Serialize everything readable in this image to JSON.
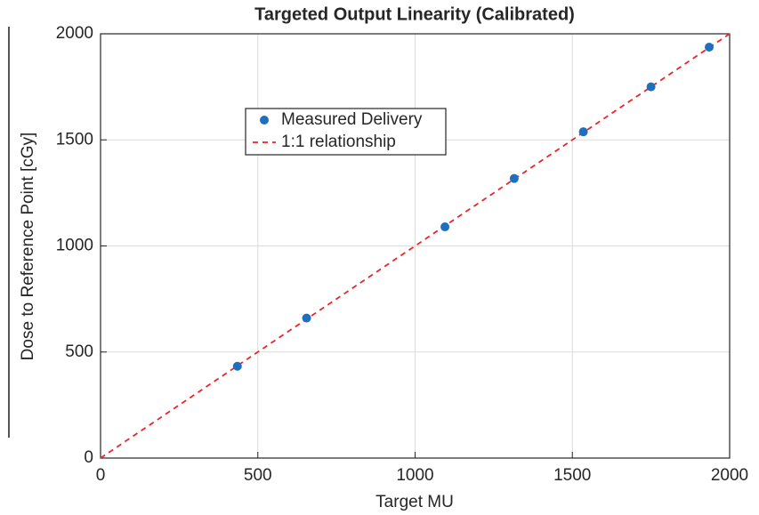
{
  "chart_data": {
    "type": "scatter",
    "title": "Targeted Output Linearity (Calibrated)",
    "x_label": "Target MU",
    "y_label": "Dose to Reference Point [cGy]",
    "series": [
      {
        "name": "Measured Delivery",
        "type": "scatter",
        "color": "#1f6fbf",
        "x": [
          435,
          655,
          1095,
          1315,
          1535,
          1750,
          1935
        ],
        "values": [
          433,
          660,
          1090,
          1318,
          1538,
          1750,
          1937
        ]
      },
      {
        "name": "1:1 relationship",
        "type": "line",
        "dashed": true,
        "color": "#e8262a",
        "x": [
          0,
          2000
        ],
        "values": [
          0,
          2000
        ]
      }
    ],
    "xlim": [
      0,
      2000
    ],
    "xticks": [
      0,
      500,
      1000,
      1500,
      2000
    ],
    "ylim": [
      0,
      2000
    ],
    "yticks": [
      0,
      500,
      1000,
      1500,
      2000
    ],
    "grid": true
  }
}
